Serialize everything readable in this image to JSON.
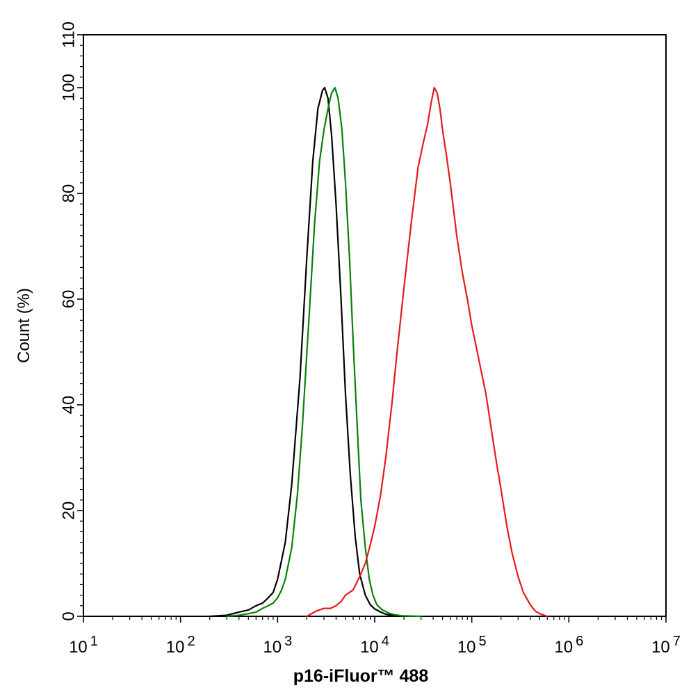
{
  "chart_data": {
    "type": "line",
    "title": "",
    "xlabel": "p16-iFluor™ 488",
    "ylabel": "Count  (%)",
    "xscale": "log",
    "xlim": [
      10,
      10000000
    ],
    "ylim": [
      0,
      110
    ],
    "x_ticks": [
      {
        "base": "10",
        "exp": "1"
      },
      {
        "base": "10",
        "exp": "2"
      },
      {
        "base": "10",
        "exp": "3"
      },
      {
        "base": "10",
        "exp": "4"
      },
      {
        "base": "10",
        "exp": "5"
      },
      {
        "base": "10",
        "exp": "6"
      },
      {
        "base": "10",
        "exp": "7"
      }
    ],
    "y_ticks": [
      "0",
      "20",
      "40",
      "60",
      "80",
      "100",
      "110"
    ],
    "y_tick_values": [
      0,
      20,
      40,
      60,
      80,
      100,
      110
    ],
    "grid": false,
    "legend": "none",
    "series": [
      {
        "color": "#000000",
        "x": [
          200,
          300,
          400,
          500,
          600,
          700,
          800,
          900,
          1000,
          1200,
          1400,
          1700,
          2000,
          2300,
          2600,
          2900,
          3050,
          3300,
          3600,
          4000,
          4500,
          5000,
          5600,
          6300,
          7000,
          8000,
          9000,
          10000,
          11500,
          13000,
          15000,
          18000,
          22000
        ],
        "y": [
          0,
          0.2,
          0.8,
          1.2,
          2,
          2.5,
          3.5,
          4.5,
          7,
          14,
          25,
          45,
          68,
          86,
          96,
          99.5,
          100,
          98,
          91,
          78,
          60,
          42,
          27,
          15,
          8,
          4,
          2.2,
          1.4,
          0.8,
          0.4,
          0.2,
          0.1,
          0
        ]
      },
      {
        "color": "#0a7f0a",
        "x": [
          300,
          400,
          500,
          600,
          700,
          800,
          900,
          1000,
          1100,
          1200,
          1400,
          1600,
          1800,
          2100,
          2400,
          2700,
          3000,
          3300,
          3600,
          3900,
          4200,
          4600,
          5000,
          5500,
          6000,
          6600,
          7200,
          8000,
          8800,
          9600,
          10500,
          12000,
          14000,
          16000,
          19000,
          23000,
          30000
        ],
        "y": [
          0,
          0.2,
          0.5,
          0.8,
          1.5,
          2,
          2.5,
          3.5,
          5,
          7,
          13,
          23,
          36,
          56,
          74,
          86,
          92,
          96,
          99,
          100,
          98,
          92,
          82,
          68,
          52,
          36,
          22,
          13,
          7,
          4,
          2.2,
          1.2,
          0.6,
          0.3,
          0.1,
          0.05,
          0
        ]
      },
      {
        "color": "#e31a1c",
        "x": [
          2000,
          2500,
          3000,
          3500,
          4000,
          4500,
          5000,
          5500,
          6000,
          7000,
          8000,
          9000,
          10000,
          11500,
          13000,
          15000,
          17000,
          20000,
          24000,
          28000,
          32000,
          35000,
          38000,
          41000,
          44000,
          47000,
          50000,
          55000,
          60000,
          70000,
          80000,
          90000,
          100000,
          120000,
          140000,
          160000,
          180000,
          200000,
          230000,
          260000,
          300000,
          340000,
          400000,
          450000,
          500000,
          600000
        ],
        "y": [
          0,
          1,
          1.5,
          1.5,
          2,
          2.8,
          4,
          4.5,
          5,
          7.5,
          10,
          13.5,
          17,
          23,
          30,
          40,
          50,
          62,
          75,
          85,
          90,
          93,
          97,
          100,
          99,
          96,
          92,
          87,
          82,
          72,
          65,
          60,
          55,
          48,
          42,
          35,
          29,
          24,
          17,
          12,
          7.5,
          4.5,
          2.2,
          1,
          0.5,
          0
        ]
      }
    ]
  }
}
